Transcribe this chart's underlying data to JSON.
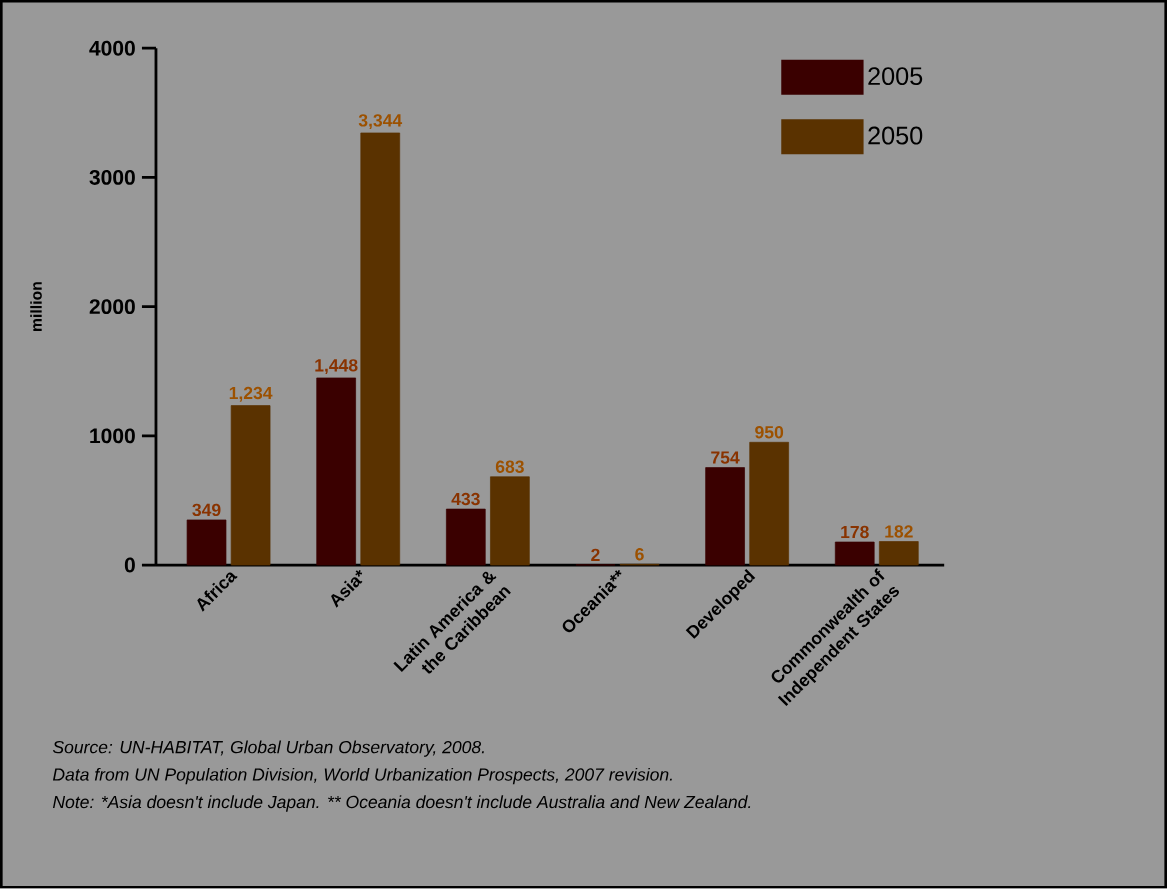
{
  "chart_data": {
    "type": "bar",
    "ylabel": "million",
    "categories": [
      "Africa",
      "Asia*",
      "Latin America & the Caribbean",
      "Oceania**",
      "Developed",
      "Commonwealth of Independent States"
    ],
    "series": [
      {
        "name": "2005",
        "color": "#3a0000",
        "values": [
          349,
          1448,
          433,
          2,
          754,
          178
        ],
        "value_labels": [
          "349",
          "1,448",
          "433",
          "2",
          "754",
          "178"
        ]
      },
      {
        "name": "2050",
        "color": "#5a3200",
        "values": [
          1234,
          3344,
          683,
          6,
          950,
          182
        ],
        "value_labels": [
          "1,234",
          "3,344",
          "683",
          "6",
          "950",
          "182"
        ]
      }
    ],
    "ylim": [
      0,
      4000
    ],
    "yticks": [
      0,
      1000,
      2000,
      3000,
      4000
    ],
    "grid": false,
    "legend": "top right",
    "annotations": [
      "Source: UN-HABITAT, Global Urban Observatory, 2008.",
      "Data from UN Population Division, World Urbanization Prospects, 2007 revision.",
      "Note: *Asia doesn't include Japan. ** Oceania doesn't include Australia and New Zealand."
    ]
  }
}
